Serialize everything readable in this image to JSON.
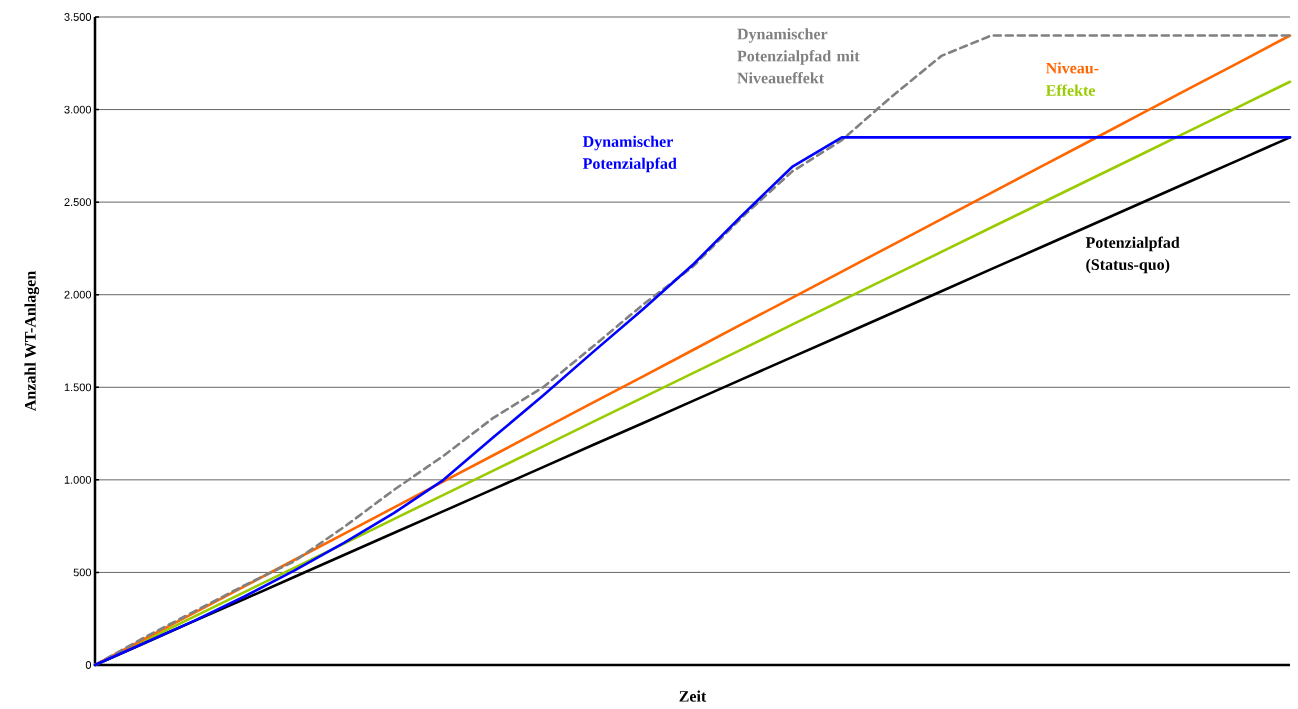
{
  "chart_data": {
    "type": "line",
    "xlabel": "Zeit",
    "ylabel": "Anzahl WT-Anlagen",
    "categories": [
      null,
      null,
      null,
      null,
      null,
      null,
      null,
      null,
      null,
      null,
      null,
      null,
      null,
      null,
      null,
      null,
      null,
      null,
      null,
      null,
      null,
      null,
      null,
      null,
      null
    ],
    "series": [
      {
        "name": "Potenzialpfad (Status-quo)",
        "color": "#000000",
        "values": [
          0,
          119,
          238,
          356,
          475,
          594,
          713,
          831,
          950,
          1069,
          1188,
          1306,
          1425,
          1544,
          1663,
          1781,
          1900,
          2019,
          2138,
          2256,
          2375,
          2494,
          2613,
          2731,
          2850
        ]
      },
      {
        "name": "Effekte",
        "color": "#99cc00",
        "values": [
          0,
          131,
          263,
          394,
          525,
          656,
          788,
          919,
          1050,
          1181,
          1313,
          1444,
          1575,
          1706,
          1838,
          1969,
          2100,
          2231,
          2363,
          2494,
          2625,
          2756,
          2888,
          3019,
          3150
        ]
      },
      {
        "name": "Niveau-",
        "color": "#ff6600",
        "values": [
          0,
          142,
          283,
          425,
          567,
          708,
          850,
          992,
          1133,
          1275,
          1417,
          1558,
          1700,
          1842,
          1983,
          2125,
          2267,
          2408,
          2550,
          2692,
          2833,
          2975,
          3117,
          3258,
          3400
        ]
      },
      {
        "name": "Dynamischer Potenzialpfad mit Niveaueffekt",
        "color": "#808080",
        "line_style": "dashed",
        "values": [
          0,
          150,
          290,
          430,
          560,
          745,
          945,
          1130,
          1335,
          1500,
          1720,
          1945,
          2150,
          2420,
          2665,
          2835,
          3070,
          3290,
          3400,
          3400,
          3400,
          3400,
          3400,
          3400,
          3400
        ]
      },
      {
        "name": "Dynamischer Potenzialpfad",
        "color": "#0000ff",
        "values": [
          0,
          120,
          240,
          370,
          510,
          660,
          820,
          1000,
          1230,
          1455,
          1690,
          1920,
          2160,
          2430,
          2690,
          2850,
          2850,
          2850,
          2850,
          2850,
          2850,
          2850,
          2850,
          2850,
          2850
        ]
      }
    ],
    "ylim": [
      0,
      3500
    ],
    "yticks": [
      0,
      500,
      {
        "value": 1000,
        "label": "1.000"
      },
      {
        "value": 1500,
        "label": "1.500"
      },
      {
        "value": 2000,
        "label": "2.000"
      },
      {
        "value": 2500,
        "label": "2.500"
      },
      {
        "value": 3000,
        "label": "3.000"
      },
      {
        "value": 3500,
        "label": "3.500"
      }
    ],
    "grid": "y",
    "legend": false,
    "marker": "none",
    "line_style": "solid"
  }
}
